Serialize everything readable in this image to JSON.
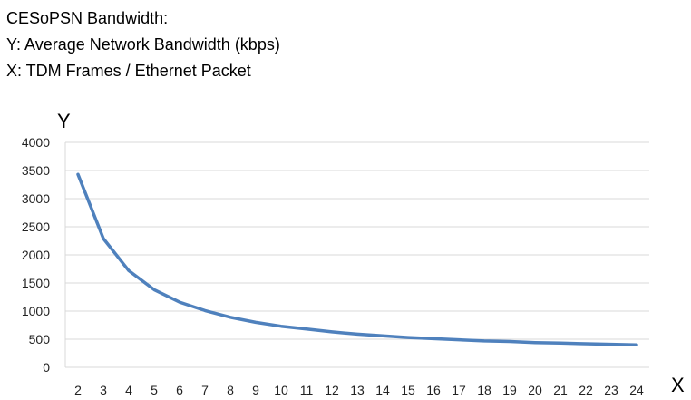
{
  "header": {
    "title": "CESoPSN Bandwidth:",
    "y_line": "Y: Average Network Bandwidth (kbps)",
    "x_line": "X: TDM Frames / Ethernet Packet"
  },
  "chart_data": {
    "type": "line",
    "title": "CESoPSN Bandwidth:",
    "xlabel": "X",
    "ylabel": "Y",
    "x": [
      2,
      3,
      4,
      5,
      6,
      7,
      8,
      9,
      10,
      11,
      12,
      13,
      14,
      15,
      16,
      17,
      18,
      19,
      20,
      21,
      22,
      23,
      24
    ],
    "series": [
      {
        "values": [
          3430,
          2290,
          1720,
          1380,
          1160,
          1010,
          890,
          800,
          730,
          680,
          630,
          590,
          560,
          530,
          510,
          490,
          470,
          460,
          440,
          430,
          420,
          410,
          400
        ]
      }
    ],
    "ylim": [
      0,
      4000
    ],
    "yticks": [
      0,
      500,
      1000,
      1500,
      2000,
      2500,
      3000,
      3500,
      4000
    ],
    "grid": true,
    "line_color": "#4f81bd",
    "grid_color": "#d9d9d9"
  }
}
